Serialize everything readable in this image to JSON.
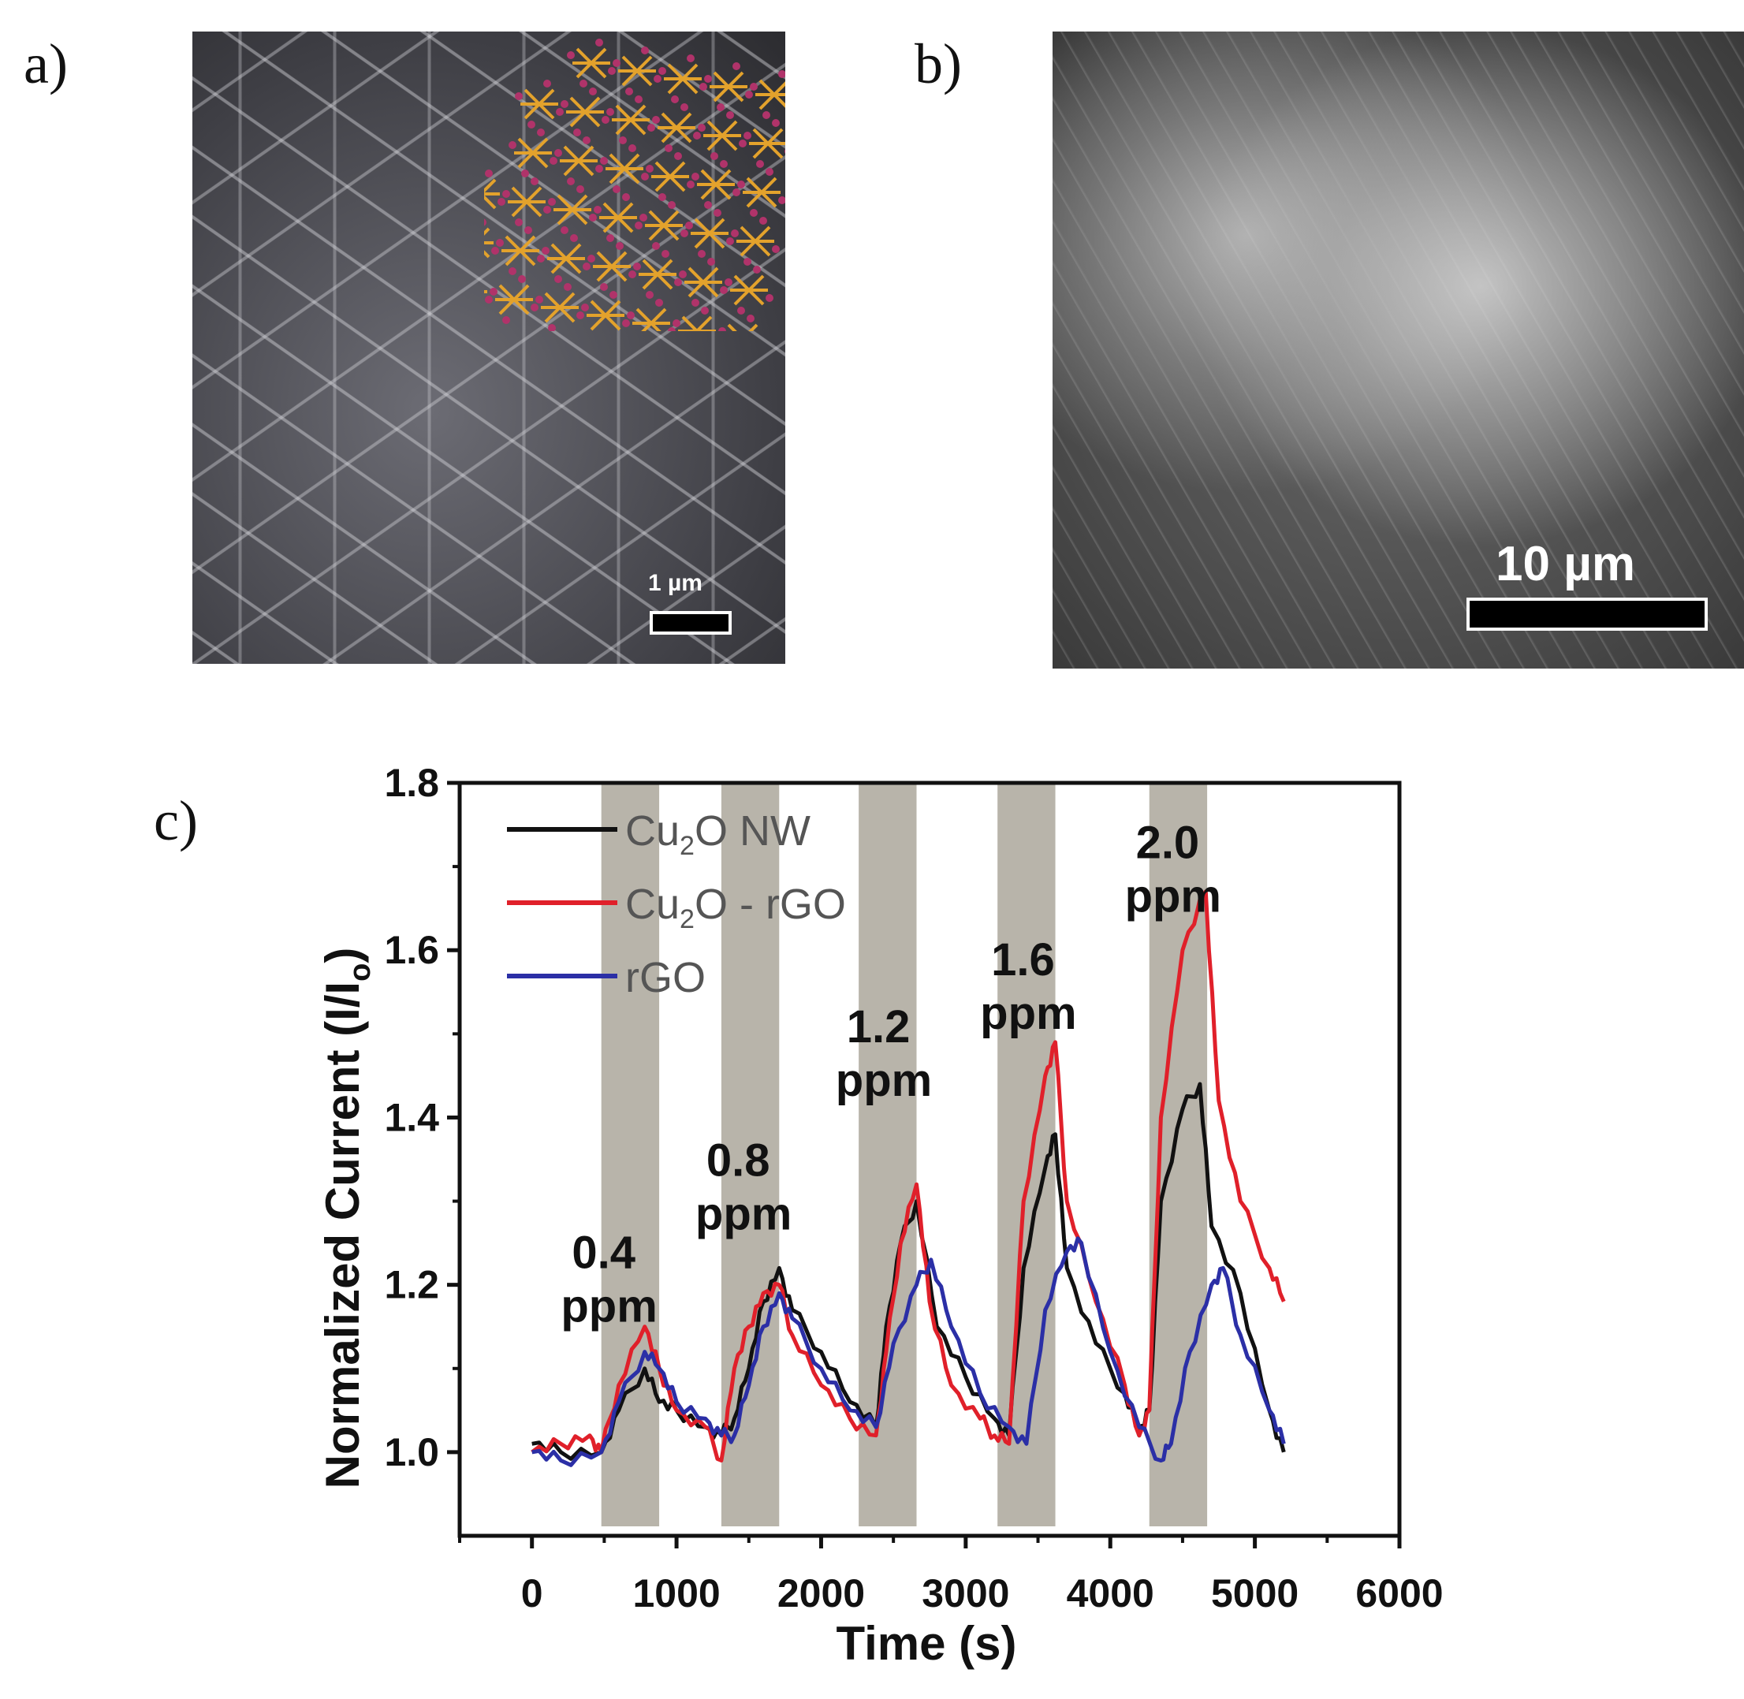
{
  "panels": {
    "a": {
      "label": "a)",
      "scale_label": "1 µm"
    },
    "b": {
      "label": "b)",
      "scale_label": "10 µm"
    },
    "c": {
      "label": "c)"
    }
  },
  "chart_data": {
    "type": "line",
    "xlabel": "Time (s)",
    "ylabel": "Normalized Current (I/I",
    "ylabel_sub": "o",
    "ylabel_end": ")",
    "xlim": [
      -500,
      6000
    ],
    "ylim": [
      0.9,
      1.8
    ],
    "xticks": [
      0,
      1000,
      2000,
      3000,
      4000,
      5000,
      6000
    ],
    "yticks": [
      1.0,
      1.2,
      1.4,
      1.6,
      1.8
    ],
    "ytick_labels": [
      "1.0",
      "1.2",
      "1.4",
      "1.6",
      "1.8"
    ],
    "exposure_bands": [
      [
        480,
        880
      ],
      [
        1310,
        1710
      ],
      [
        2260,
        2660
      ],
      [
        3220,
        3620
      ],
      [
        4270,
        4670
      ]
    ],
    "band_color": "#b8b4aa",
    "annotations": [
      {
        "line1": "0.4",
        "line2": "ppm",
        "x": 200,
        "y": 1.22
      },
      {
        "line1": "0.8",
        "line2": "ppm",
        "x": 1130,
        "y": 1.33
      },
      {
        "line1": "1.2",
        "line2": "ppm",
        "x": 2100,
        "y": 1.49
      },
      {
        "line1": "1.6",
        "line2": "ppm",
        "x": 3100,
        "y": 1.57
      },
      {
        "line1": "2.0",
        "line2": "ppm",
        "x": 4100,
        "y": 1.71
      }
    ],
    "legend": [
      {
        "name_main": "Cu",
        "name_sub": "2",
        "name_rest": "O NW",
        "color": "#111111"
      },
      {
        "name_main": "Cu",
        "name_sub": "2",
        "name_rest": "O - rGO",
        "color": "#e0202a"
      },
      {
        "name_main": "rGO",
        "name_sub": "",
        "name_rest": "",
        "color": "#2b2fa6"
      }
    ],
    "series": [
      {
        "color": "#111111",
        "x": [
          0,
          200,
          480,
          600,
          780,
          880,
          1000,
          1200,
          1310,
          1400,
          1500,
          1600,
          1710,
          1800,
          2000,
          2200,
          2380,
          2450,
          2550,
          2660,
          2800,
          3000,
          3200,
          3300,
          3400,
          3550,
          3620,
          3700,
          3900,
          4100,
          4200,
          4270,
          4350,
          4500,
          4620,
          4700,
          4900,
          5100,
          5200
        ],
        "y": [
          1.01,
          1.0,
          1.0,
          1.05,
          1.1,
          1.06,
          1.05,
          1.03,
          1.02,
          1.04,
          1.1,
          1.18,
          1.22,
          1.17,
          1.12,
          1.06,
          1.03,
          1.15,
          1.25,
          1.3,
          1.15,
          1.09,
          1.04,
          1.02,
          1.22,
          1.34,
          1.38,
          1.22,
          1.13,
          1.07,
          1.02,
          1.05,
          1.3,
          1.41,
          1.44,
          1.27,
          1.19,
          1.05,
          1.0
        ]
      },
      {
        "color": "#e0202a",
        "x": [
          0,
          200,
          400,
          480,
          600,
          780,
          880,
          1000,
          1200,
          1310,
          1400,
          1500,
          1600,
          1710,
          1800,
          2000,
          2200,
          2380,
          2450,
          2550,
          2660,
          2750,
          2900,
          3100,
          3200,
          3300,
          3400,
          3550,
          3620,
          3700,
          3900,
          4100,
          4200,
          4270,
          4350,
          4500,
          4660,
          4750,
          4900,
          5100,
          5200
        ],
        "y": [
          1.0,
          1.01,
          1.02,
          1.0,
          1.08,
          1.15,
          1.1,
          1.05,
          1.03,
          0.99,
          1.1,
          1.15,
          1.19,
          1.2,
          1.14,
          1.08,
          1.04,
          1.02,
          1.12,
          1.25,
          1.32,
          1.18,
          1.08,
          1.04,
          1.02,
          1.01,
          1.3,
          1.45,
          1.49,
          1.3,
          1.18,
          1.08,
          1.02,
          1.05,
          1.4,
          1.6,
          1.67,
          1.42,
          1.3,
          1.22,
          1.18
        ]
      },
      {
        "color": "#2b2fa6",
        "x": [
          0,
          200,
          480,
          600,
          780,
          880,
          1000,
          1200,
          1310,
          1400,
          1500,
          1600,
          1710,
          1800,
          2000,
          2200,
          2380,
          2500,
          2660,
          2760,
          2900,
          3100,
          3300,
          3420,
          3550,
          3700,
          3800,
          4000,
          4200,
          4350,
          4420,
          4550,
          4700,
          4780,
          4900,
          5100,
          5200
        ],
        "y": [
          1.0,
          0.99,
          1.0,
          1.06,
          1.12,
          1.1,
          1.06,
          1.04,
          1.02,
          1.02,
          1.08,
          1.15,
          1.19,
          1.16,
          1.1,
          1.05,
          1.03,
          1.13,
          1.2,
          1.23,
          1.15,
          1.07,
          1.03,
          1.01,
          1.17,
          1.24,
          1.25,
          1.12,
          1.03,
          0.99,
          1.01,
          1.12,
          1.2,
          1.22,
          1.14,
          1.05,
          1.01
        ]
      }
    ]
  }
}
